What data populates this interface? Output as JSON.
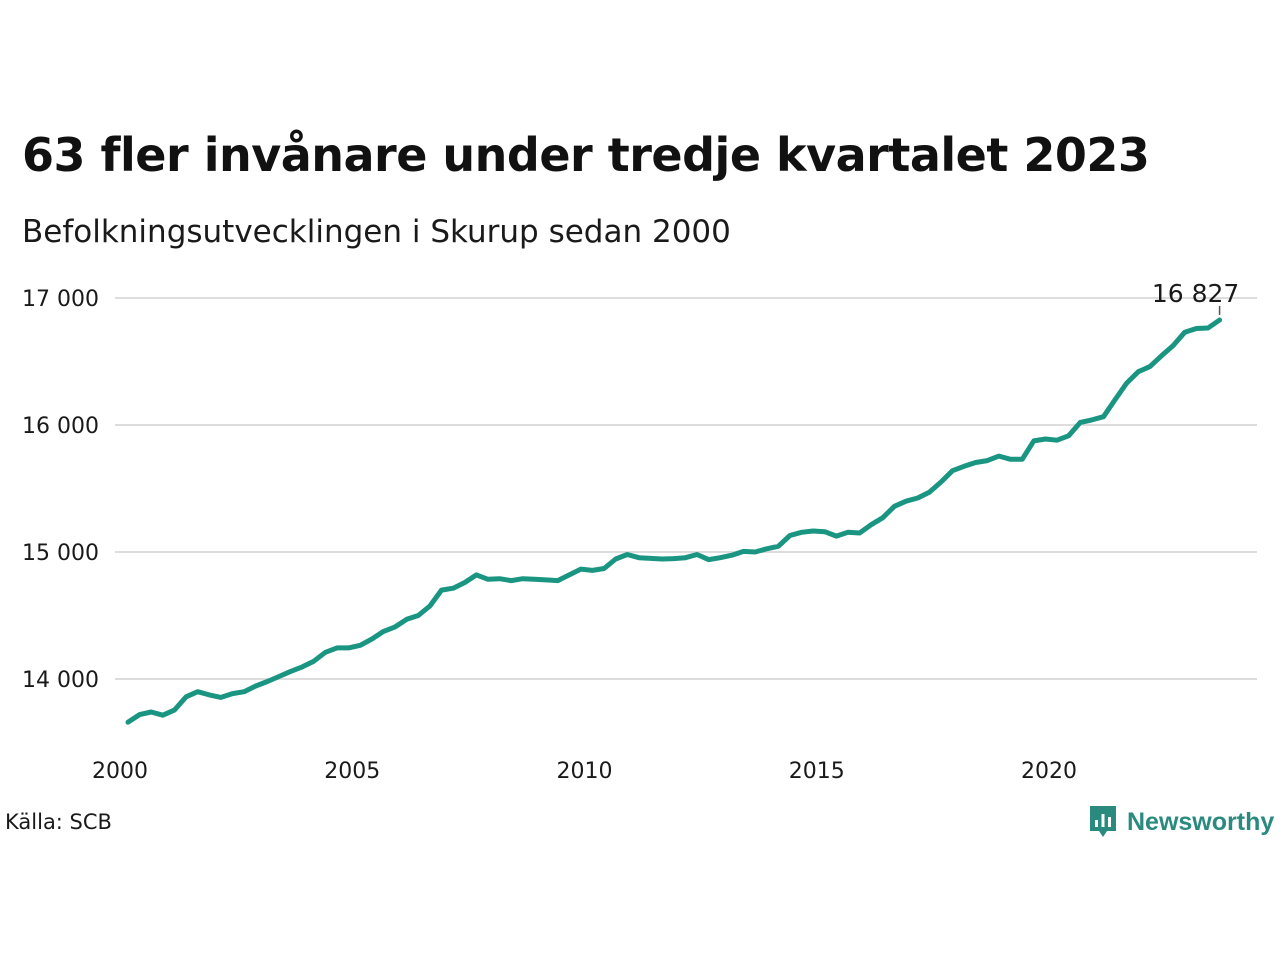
{
  "header": {
    "title": "63 fler invånare under tredje kvartalet 2023",
    "subtitle": "Befolkningsutvecklingen i Skurup sedan 2000"
  },
  "footer": {
    "source": "Källa: SCB",
    "brand": "Newsworthy",
    "brand_icon": "bar-chart-icon"
  },
  "colors": {
    "line": "#1a9582",
    "grid": "#dddddd",
    "brand": "#2a8a7e"
  },
  "chart_data": {
    "type": "line",
    "title": "63 fler invånare under tredje kvartalet 2023",
    "subtitle": "Befolkningsutvecklingen i Skurup sedan 2000",
    "xlabel": "",
    "ylabel": "",
    "x_ticks": [
      "2000",
      "2005",
      "2010",
      "2015",
      "2020"
    ],
    "y_ticks": [
      "14 000",
      "15 000",
      "16 000",
      "17 000"
    ],
    "y_tick_values": [
      14000,
      15000,
      16000,
      17000
    ],
    "ylim": [
      13500,
      17050
    ],
    "xlim": [
      "2000-Q1",
      "2024-Q3"
    ],
    "grid": true,
    "end_label": "16 827",
    "series": [
      {
        "x": [
          "2000-Q1",
          "2000-Q2",
          "2000-Q3",
          "2000-Q4",
          "2001-Q1",
          "2001-Q2",
          "2001-Q3",
          "2001-Q4",
          "2002-Q1",
          "2002-Q2",
          "2002-Q3",
          "2002-Q4",
          "2003-Q1",
          "2003-Q2",
          "2003-Q3",
          "2003-Q4",
          "2004-Q1",
          "2004-Q2",
          "2004-Q3",
          "2004-Q4",
          "2005-Q1",
          "2005-Q2",
          "2005-Q3",
          "2005-Q4",
          "2006-Q1",
          "2006-Q2",
          "2006-Q3",
          "2006-Q4",
          "2007-Q1",
          "2007-Q2",
          "2007-Q3",
          "2007-Q4",
          "2008-Q1",
          "2008-Q2",
          "2008-Q3",
          "2008-Q4",
          "2009-Q1",
          "2009-Q2",
          "2009-Q3",
          "2009-Q4",
          "2010-Q1",
          "2010-Q2",
          "2010-Q3",
          "2010-Q4",
          "2011-Q1",
          "2011-Q2",
          "2011-Q3",
          "2011-Q4",
          "2012-Q1",
          "2012-Q2",
          "2012-Q3",
          "2012-Q4",
          "2013-Q1",
          "2013-Q2",
          "2013-Q3",
          "2013-Q4",
          "2014-Q1",
          "2014-Q2",
          "2014-Q3",
          "2014-Q4",
          "2015-Q1",
          "2015-Q2",
          "2015-Q3",
          "2015-Q4",
          "2016-Q1",
          "2016-Q2",
          "2016-Q3",
          "2016-Q4",
          "2017-Q1",
          "2017-Q2",
          "2017-Q3",
          "2017-Q4",
          "2018-Q1",
          "2018-Q2",
          "2018-Q3",
          "2018-Q4",
          "2019-Q1",
          "2019-Q2",
          "2019-Q3",
          "2019-Q4",
          "2020-Q1",
          "2020-Q2",
          "2020-Q3",
          "2020-Q4",
          "2021-Q1",
          "2021-Q2",
          "2021-Q3",
          "2021-Q4",
          "2022-Q1",
          "2022-Q2",
          "2022-Q3",
          "2022-Q4",
          "2023-Q1",
          "2023-Q2",
          "2023-Q3"
        ],
        "values": [
          13660,
          13720,
          13740,
          13715,
          13755,
          13860,
          13900,
          13875,
          13855,
          13885,
          13900,
          13945,
          13980,
          14020,
          14060,
          14095,
          14140,
          14210,
          14245,
          14245,
          14265,
          14315,
          14375,
          14410,
          14470,
          14500,
          14575,
          14700,
          14715,
          14760,
          14820,
          14785,
          14790,
          14775,
          14790,
          14785,
          14780,
          14775,
          14820,
          14865,
          14855,
          14870,
          14945,
          14980,
          14955,
          14950,
          14945,
          14948,
          14955,
          14980,
          14940,
          14955,
          14975,
          15005,
          15000,
          15025,
          15045,
          15130,
          15155,
          15165,
          15160,
          15125,
          15155,
          15150,
          15215,
          15270,
          15360,
          15400,
          15425,
          15470,
          15550,
          15640,
          15675,
          15705,
          15720,
          15755,
          15730,
          15730,
          15875,
          15890,
          15880,
          15915,
          16020,
          16040,
          16065,
          16200,
          16330,
          16420,
          16460,
          16545,
          16625,
          16730,
          16760,
          16764,
          16827
        ]
      }
    ]
  }
}
